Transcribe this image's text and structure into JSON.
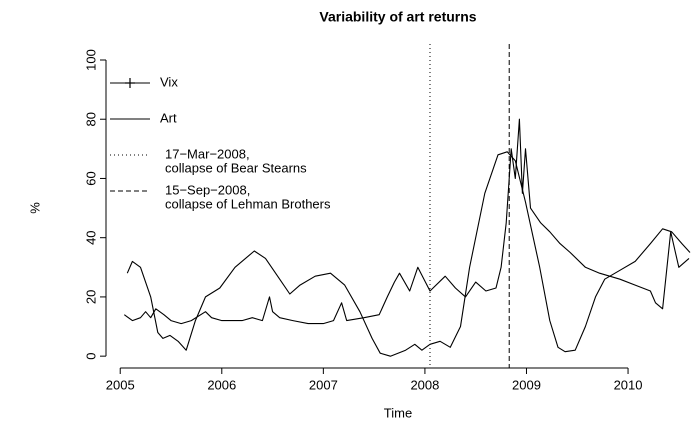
{
  "chart_data": {
    "type": "line",
    "title": "Variability of art returns",
    "xlabel": "Time",
    "ylabel": "%",
    "xlim": [
      2004.86,
      2010.61
    ],
    "ylim": [
      -4,
      105.4
    ],
    "xticks": [
      2005,
      2006,
      2007,
      2008,
      2009,
      2010
    ],
    "yticks": [
      0,
      20,
      40,
      60,
      80,
      100
    ],
    "grid": false,
    "legend": "top-left",
    "series": [
      {
        "name": "Vix",
        "color": "#000000",
        "marker": "+",
        "x": [
          2005.04,
          2005.12,
          2005.2,
          2005.25,
          2005.3,
          2005.35,
          2005.43,
          2005.5,
          2005.6,
          2005.7,
          2005.84,
          2005.9,
          2006.0,
          2006.2,
          2006.3,
          2006.4,
          2006.47,
          2006.5,
          2006.57,
          2006.7,
          2006.85,
          2007.0,
          2007.1,
          2007.18,
          2007.23,
          2007.4,
          2007.55,
          2007.63,
          2007.7,
          2007.75,
          2007.85,
          2007.93,
          2008.05,
          2008.2,
          2008.3,
          2008.4,
          2008.5,
          2008.6,
          2008.7,
          2008.75,
          2008.8,
          2008.85,
          2008.89,
          2008.93,
          2008.96,
          2008.99,
          2009.04,
          2009.14,
          2009.23,
          2009.33,
          2009.43,
          2009.58,
          2009.72,
          2009.92,
          2010.07,
          2010.22,
          2010.27,
          2010.34,
          2010.42,
          2010.5,
          2010.6
        ],
        "values": [
          14,
          12,
          13,
          15,
          13,
          16,
          14,
          12,
          11,
          12,
          15,
          13,
          12,
          12,
          13,
          12,
          20,
          15,
          13,
          12,
          11,
          11,
          12,
          18,
          12,
          13,
          14,
          20,
          25,
          28,
          22,
          30,
          22,
          27,
          23,
          20,
          25,
          22,
          23,
          30,
          45,
          70,
          60,
          80,
          55,
          70,
          50,
          45,
          42,
          38,
          35,
          30,
          28,
          26,
          24,
          22,
          18,
          16,
          42,
          30,
          33
        ]
      },
      {
        "name": "Art",
        "color": "#000000",
        "x": [
          2005.07,
          2005.12,
          2005.2,
          2005.3,
          2005.37,
          2005.42,
          2005.49,
          2005.57,
          2005.65,
          2005.74,
          2005.84,
          2005.98,
          2006.13,
          2006.32,
          2006.43,
          2006.57,
          2006.67,
          2006.77,
          2006.92,
          2007.07,
          2007.21,
          2007.36,
          2007.48,
          2007.56,
          2007.66,
          2007.81,
          2007.9,
          2007.97,
          2008.05,
          2008.15,
          2008.25,
          2008.35,
          2008.44,
          2008.59,
          2008.72,
          2008.81,
          2008.89,
          2008.99,
          2009.13,
          2009.23,
          2009.31,
          2009.38,
          2009.48,
          2009.58,
          2009.68,
          2009.77,
          2009.92,
          2010.07,
          2010.22,
          2010.34,
          2010.43,
          2010.53,
          2010.61
        ],
        "values": [
          28,
          32,
          30,
          20,
          8,
          6,
          7,
          5,
          2,
          12,
          20,
          23,
          30,
          35.5,
          33,
          26,
          21,
          24,
          27,
          28,
          24,
          15,
          6,
          1,
          0,
          2,
          4,
          2,
          4,
          5,
          3,
          10,
          30,
          55,
          68,
          69,
          66,
          52,
          30,
          12,
          3,
          1.5,
          2,
          10,
          20,
          26,
          29,
          32,
          38,
          43,
          42,
          38,
          35
        ]
      }
    ],
    "annotations": [
      {
        "x": 2008.05,
        "style": "dotted",
        "label": [
          "17−Mar−2008,",
          "collapse of Bear Stearns"
        ]
      },
      {
        "x": 2008.83,
        "style": "dashed",
        "label": [
          "15−Sep−2008,",
          "collapse of Lehman Brothers"
        ]
      }
    ]
  }
}
